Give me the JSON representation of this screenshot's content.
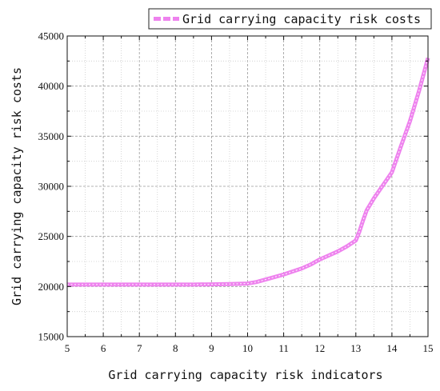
{
  "chart_data": {
    "type": "line",
    "xlabel": "Grid carrying capacity risk indicators",
    "ylabel": "Grid carrying capacity risk costs",
    "xlim": [
      5,
      15
    ],
    "ylim": [
      15000,
      45000
    ],
    "x_ticks": [
      5,
      6,
      7,
      8,
      9,
      10,
      11,
      12,
      13,
      14,
      15
    ],
    "y_ticks": [
      15000,
      20000,
      25000,
      30000,
      35000,
      40000,
      45000
    ],
    "grid": true,
    "legend_position": "top-right",
    "series": [
      {
        "name": "Grid carrying capacity risk costs",
        "color": "#ee82ee",
        "x": [
          5,
          5.5,
          6,
          6.5,
          7,
          7.5,
          8,
          8.5,
          9,
          9.5,
          10,
          10.25,
          10.5,
          10.75,
          11,
          11.25,
          11.5,
          11.75,
          12,
          12.25,
          12.5,
          12.75,
          13,
          13.1,
          13.2,
          13.3,
          13.5,
          13.75,
          14,
          14.25,
          14.5,
          14.75,
          15
        ],
        "y": [
          20200,
          20200,
          20200,
          20200,
          20200,
          20200,
          20200,
          20200,
          20220,
          20250,
          20300,
          20450,
          20700,
          20950,
          21200,
          21500,
          21800,
          22200,
          22700,
          23100,
          23500,
          24000,
          24600,
          25500,
          26600,
          27600,
          28800,
          30100,
          31400,
          34000,
          36500,
          39500,
          42800
        ]
      }
    ]
  }
}
